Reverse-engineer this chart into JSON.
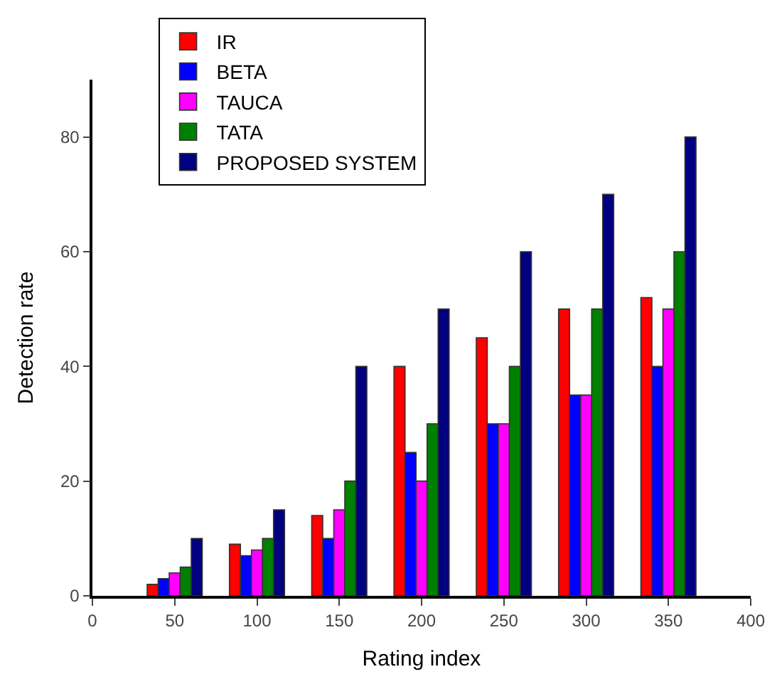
{
  "chart_data": {
    "type": "bar",
    "xlabel": "Rating index",
    "ylabel": "Detection rate",
    "x": [
      50,
      100,
      150,
      200,
      250,
      300,
      350
    ],
    "series": [
      {
        "name": "IR",
        "color": "#ff0000",
        "values": [
          2,
          9,
          14,
          40,
          45,
          50,
          52
        ]
      },
      {
        "name": "BETA",
        "color": "#0000ff",
        "values": [
          3,
          7,
          10,
          25,
          30,
          35,
          40
        ]
      },
      {
        "name": "TAUCA",
        "color": "#ff00ff",
        "values": [
          4,
          8,
          15,
          20,
          30,
          35,
          50
        ]
      },
      {
        "name": "TATA",
        "color": "#008000",
        "values": [
          5,
          10,
          20,
          30,
          40,
          50,
          60
        ]
      },
      {
        "name": "PROPOSED SYSTEM",
        "color": "#000080",
        "values": [
          10,
          15,
          40,
          50,
          60,
          70,
          80
        ]
      }
    ],
    "xlim": [
      0,
      400
    ],
    "xticks": [
      0,
      50,
      100,
      150,
      200,
      250,
      300,
      350,
      400
    ],
    "ylim": [
      0,
      90
    ],
    "yticks": [
      0,
      20,
      40,
      60,
      80
    ],
    "legend": "top left"
  }
}
